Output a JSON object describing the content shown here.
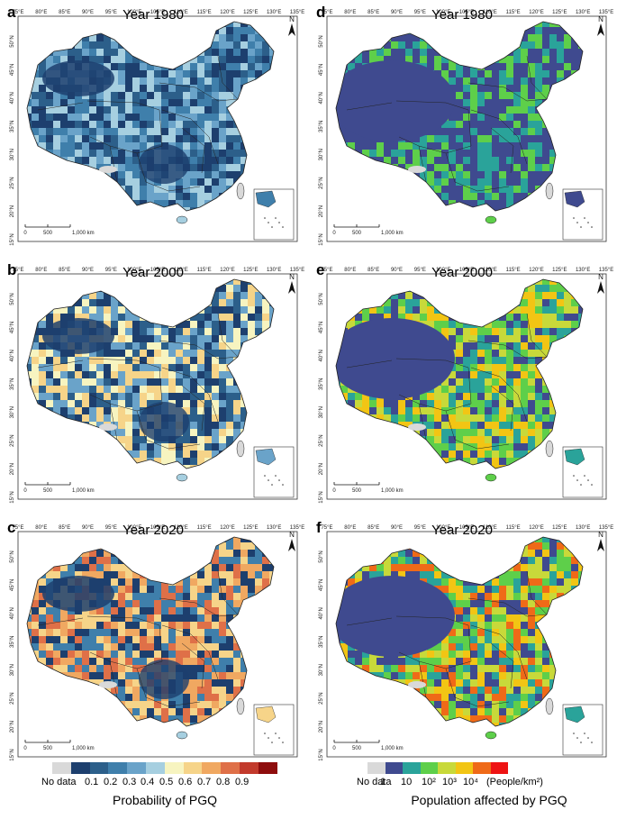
{
  "panels": [
    {
      "label": "a",
      "title": "Year 1980"
    },
    {
      "label": "d",
      "title": "Year 1980"
    },
    {
      "label": "b",
      "title": "Year 2000"
    },
    {
      "label": "e",
      "title": "Year 2000"
    },
    {
      "label": "c",
      "title": "Year 2020"
    },
    {
      "label": "f",
      "title": "Year 2020"
    }
  ],
  "north_label": "N",
  "lon_ticks": [
    "75°E",
    "80°E",
    "85°E",
    "90°E",
    "95°E",
    "100°E",
    "105°E",
    "110°E",
    "115°E",
    "120°E",
    "125°E",
    "130°E",
    "135°E"
  ],
  "lat_ticks": [
    "50°N",
    "45°N",
    "40°N",
    "35°N",
    "30°N",
    "25°N",
    "20°N",
    "15°N"
  ],
  "scale_bar": {
    "zero": "0",
    "mid": "500",
    "end": "1,000 km"
  },
  "legend_left": {
    "title": "Probability of PGQ",
    "no_data": "No data",
    "ticks": [
      "0.1",
      "0.2",
      "0.3",
      "0.4",
      "0.5",
      "0.6",
      "0.7",
      "0.8",
      "0.9"
    ],
    "colors": [
      "#d9d9d9",
      "#1d3f6e",
      "#2c5f8a",
      "#3f7fab",
      "#6aa3c9",
      "#a6cfe0",
      "#f7f4c0",
      "#f6d489",
      "#f0a861",
      "#df7048",
      "#c23a2c",
      "#8e0d0d"
    ]
  },
  "legend_right": {
    "title": "Population affected by PGQ",
    "no_data": "No data",
    "ticks": [
      "1",
      "10",
      "10²",
      "10³",
      "10⁴"
    ],
    "unit": "(People/km²)",
    "colors": [
      "#d9d9d9",
      "#3f4a8f",
      "#2aa39a",
      "#5ecf4a",
      "#c8d93a",
      "#f2c514",
      "#ef6a18",
      "#ee1313"
    ]
  }
}
